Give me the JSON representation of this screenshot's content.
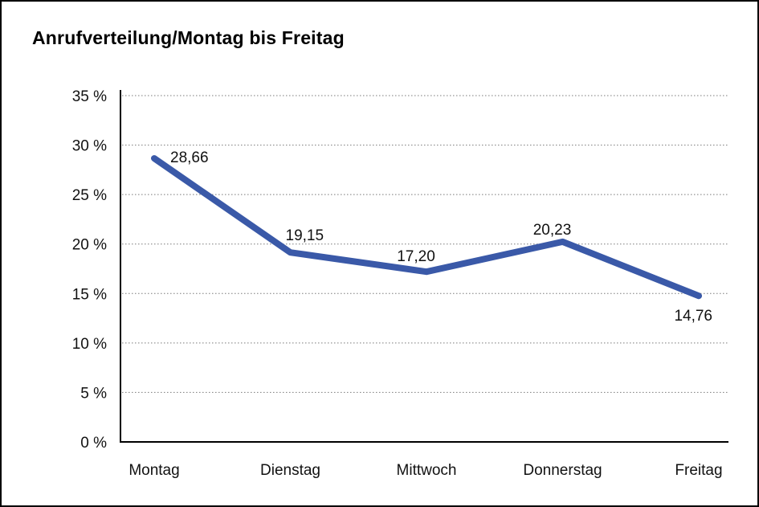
{
  "chart_data": {
    "type": "line",
    "title": "Anrufverteilung/Montag bis Freitag",
    "categories": [
      "Montag",
      "Dienstag",
      "Mittwoch",
      "Donnerstag",
      "Freitag"
    ],
    "series": [
      {
        "name": "Anrufverteilung",
        "values": [
          28.66,
          19.15,
          17.2,
          20.23,
          14.76
        ],
        "value_labels": [
          "28,66",
          "19,15",
          "17,20",
          "20,23",
          "14,76"
        ]
      }
    ],
    "xlabel": "",
    "ylabel": "",
    "ylim": [
      0,
      35
    ],
    "y_tick_step": 5,
    "y_tick_labels": [
      "0 %",
      "5 %",
      "10 %",
      "15 %",
      "20 %",
      "25 %",
      "30 %",
      "35 %"
    ],
    "grid": "horizontal-dotted",
    "legend": "none",
    "colors": {
      "line": "#3A59A8",
      "axis": "#000000",
      "gridline": "#7a7a7a",
      "text": "#111111",
      "background": "#ffffff",
      "border": "#000000"
    }
  }
}
